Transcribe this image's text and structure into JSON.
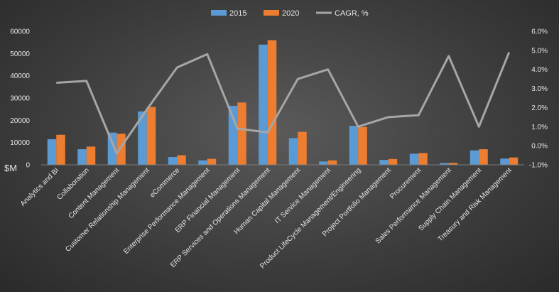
{
  "chart_data": {
    "type": "bar",
    "title": "",
    "xlabel": "",
    "ylabel": "$M",
    "ylim": [
      0,
      60000
    ],
    "y2lim": [
      -1.0,
      6.0
    ],
    "yticks": [
      "0",
      "10000",
      "20000",
      "30000",
      "40000",
      "50000",
      "60000"
    ],
    "y2ticks": [
      "-1.0%",
      "0.0%",
      "1.0%",
      "2.0%",
      "3.0%",
      "4.0%",
      "5.0%",
      "6.0%"
    ],
    "categories": [
      "Analytics and BI",
      "Collaboration",
      "Content Management",
      "Customer Relationship Management",
      "eCommerce",
      "Enterprise Performance Management",
      "ERP Financial Management",
      "ERP Services and Operations Management",
      "Human Capital Management",
      "IT Service Management",
      "Product LifeCycle Management/Engineering",
      "Project Portfolio Management",
      "Procurement",
      "Sales Performance Management",
      "Supply Chain Management",
      "Treasury and Risk Management"
    ],
    "series": [
      {
        "name": "2015",
        "type": "bar",
        "axis": "left",
        "color": "#5b9bd5",
        "values": [
          11500,
          7000,
          14500,
          24000,
          3500,
          2000,
          26500,
          54000,
          12000,
          1500,
          17500,
          2200,
          5000,
          800,
          6500,
          2800
        ]
      },
      {
        "name": "2020",
        "type": "bar",
        "axis": "left",
        "color": "#ed7d31",
        "values": [
          13500,
          8200,
          14000,
          26000,
          4300,
          2700,
          28000,
          56000,
          14800,
          2000,
          17000,
          2600,
          5300,
          900,
          7000,
          3300
        ]
      },
      {
        "name": "CAGR, %",
        "type": "line",
        "axis": "right",
        "color": "#a6a6a6",
        "values": [
          3.3,
          3.4,
          -0.4,
          1.9,
          4.1,
          4.8,
          0.9,
          0.7,
          3.5,
          4.0,
          1.0,
          1.5,
          1.6,
          4.7,
          1.0,
          4.9
        ]
      }
    ],
    "legend": "top"
  }
}
